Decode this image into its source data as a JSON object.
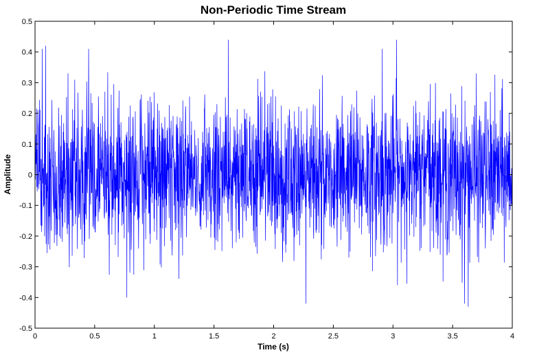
{
  "chart_data": {
    "type": "line",
    "title": "Non-Periodic Time Stream",
    "xlabel": "Time (s)",
    "ylabel": "Amplitude",
    "xlim": [
      0,
      4
    ],
    "ylim": [
      -0.5,
      0.5
    ],
    "x_ticks": [
      "0",
      "0.5",
      "1",
      "1.5",
      "2",
      "2.5",
      "3",
      "3.5",
      "4"
    ],
    "y_ticks": [
      "-0.5",
      "-0.4",
      "-0.3",
      "-0.2",
      "-0.1",
      "0",
      "0.1",
      "0.2",
      "0.3",
      "0.4",
      "0.5"
    ],
    "grid": false,
    "legend": "none",
    "series": [
      {
        "color": "#0000ff",
        "description_envelope": {
          "dense_band": [
            -0.24,
            0.24
          ],
          "typical_peak_range": [
            -0.36,
            0.36
          ],
          "max_peak": 0.44,
          "min_peak": -0.43
        },
        "notable_peaks": [
          {
            "x": 0.06,
            "y": 0.41
          },
          {
            "x": 0.09,
            "y": 0.42
          },
          {
            "x": 0.45,
            "y": 0.41
          },
          {
            "x": 1.62,
            "y": 0.44
          },
          {
            "x": 2.91,
            "y": 0.41
          },
          {
            "x": 3.03,
            "y": 0.44
          },
          {
            "x": 0.77,
            "y": -0.4
          },
          {
            "x": 2.27,
            "y": -0.42
          },
          {
            "x": 3.63,
            "y": -0.43
          },
          {
            "x": 3.6,
            "y": -0.42
          }
        ]
      }
    ]
  }
}
